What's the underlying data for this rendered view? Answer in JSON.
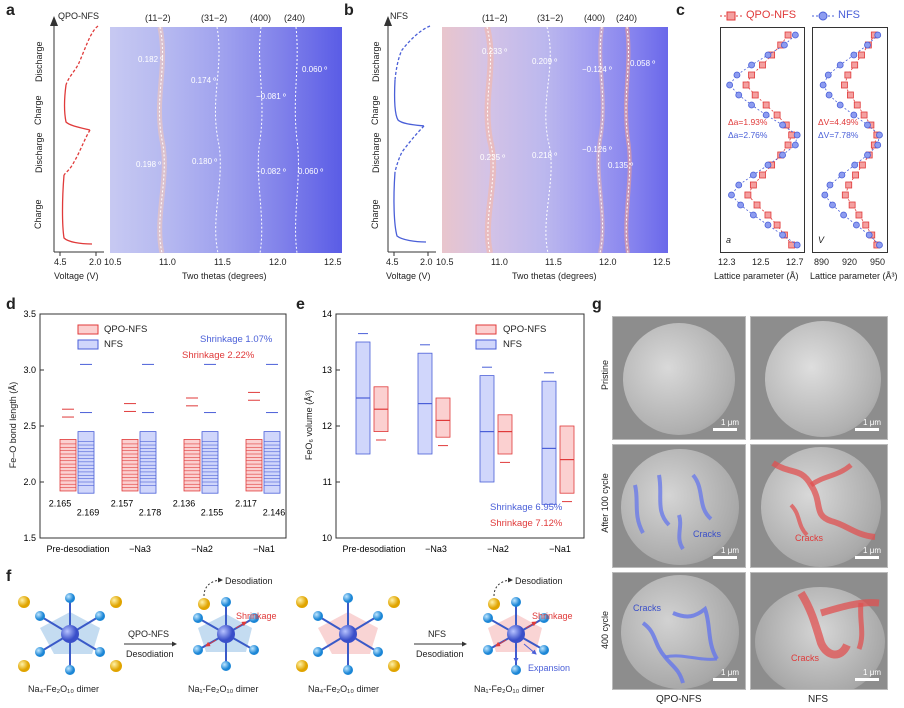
{
  "panel_labels": {
    "a": "a",
    "b": "b",
    "c": "c",
    "d": "d",
    "e": "e",
    "f": "f",
    "g": "g"
  },
  "panel_a": {
    "sample": "QPO-NFS",
    "states": [
      "Discharge",
      "Charge",
      "Discharge",
      "Charge"
    ],
    "peaks": [
      "(11−2)",
      "(31−2)",
      "(400)",
      "(240)"
    ],
    "shifts_top": [
      "0.182 º",
      "0.174 º",
      "−0.081 º",
      "0.060 º"
    ],
    "shifts_bottom": [
      "0.198 º",
      "0.180 º",
      "−0.082 º",
      "0.060 º"
    ],
    "voltage_ticks": [
      "4.5",
      "2.0"
    ],
    "voltage_label": "Voltage (V)",
    "theta_ticks": [
      "10.5",
      "11.0",
      "11.5",
      "12.0",
      "12.5"
    ],
    "theta_label": "Two thetas (degrees)"
  },
  "panel_b": {
    "sample": "NFS",
    "states": [
      "Discharge",
      "Charge",
      "Discharge",
      "Charge"
    ],
    "peaks": [
      "(11−2)",
      "(31−2)",
      "(400)",
      "(240)"
    ],
    "shifts_top": [
      "0.233 º",
      "0.209 º",
      "−0.124 º",
      "0.058 º"
    ],
    "shifts_bottom": [
      "0.235 º",
      "0.218 º",
      "−0.126 º",
      "0.135 º"
    ],
    "voltage_ticks": [
      "4.5",
      "2.0"
    ],
    "voltage_label": "Voltage (V)",
    "theta_ticks": [
      "10.5",
      "11.0",
      "11.5",
      "12.0",
      "12.5"
    ],
    "theta_label": "Two thetas (degrees)"
  },
  "panel_c": {
    "legend": [
      "QPO-NFS",
      "NFS"
    ],
    "colors": {
      "qpo": "#e03a3a",
      "nfs": "#4a5fd8"
    },
    "left": {
      "annot_qpo": "Δa=1.93%",
      "annot_nfs": "Δa=2.76%",
      "corner": "a",
      "ticks": [
        "12.3",
        "12.5",
        "12.7"
      ],
      "xlabel": "Lattice parameter (Å)"
    },
    "right": {
      "annot_qpo": "ΔV=4.49%",
      "annot_nfs": "ΔV=7.78%",
      "corner": "V",
      "ticks": [
        "890",
        "920",
        "950"
      ],
      "xlabel": "Lattice parameter (Å³)"
    }
  },
  "panel_d": {
    "ylabel": "Fe–O bond length (Å)",
    "yticks": [
      "1.5",
      "2.0",
      "2.5",
      "3.0",
      "3.5"
    ],
    "categories": [
      "Pre-desodiation",
      "−Na3",
      "−Na2",
      "−Na1"
    ],
    "legend": [
      "QPO-NFS",
      "NFS"
    ],
    "shrink_nfs": "Shrinkage 1.07%",
    "shrink_qpo": "Shrinkage 2.22%",
    "means_qpo": [
      "2.165",
      "2.157",
      "2.136",
      "2.117"
    ],
    "means_nfs": [
      "2.169",
      "2.178",
      "2.155",
      "2.146"
    ]
  },
  "panel_e": {
    "ylabel": "FeO₆ volume (Å³)",
    "yticks": [
      "10",
      "11",
      "12",
      "13",
      "14"
    ],
    "categories": [
      "Pre-desodiation",
      "−Na3",
      "−Na2",
      "−Na1"
    ],
    "legend": [
      "QPO-NFS",
      "NFS"
    ],
    "shrink_nfs": "Shrinkage 6.95%",
    "shrink_qpo": "Shrinkage 7.12%"
  },
  "panel_f": {
    "arrow1_top": "QPO-NFS",
    "arrow1_bottom": "Desodiation",
    "arrow2_top": "NFS",
    "arrow2_bottom": "Desodiation",
    "desodiation": "Desodiation",
    "shrinkage": "Shrinkage",
    "expansion": "Expansion",
    "captions": [
      "Na₄-Fe₂O₁₀ dimer",
      "Na₁-Fe₂O₁₀ dimer",
      "Na₄-Fe₂O₁₀ dimer",
      "Na₁-Fe₂O₁₀ dimer"
    ]
  },
  "panel_g": {
    "rows": [
      "Pristine",
      "After 100 cycle",
      "400 cycle"
    ],
    "cols": [
      "QPO-NFS",
      "NFS"
    ],
    "scale": "1 μm",
    "cracks": "Cracks"
  },
  "chart_data": [
    {
      "type": "scatter",
      "title": "",
      "xlabel": "Lattice parameter (Å)",
      "xlim": [
        12.3,
        12.7
      ],
      "series": [
        {
          "name": "QPO-NFS",
          "values": [
            12.66,
            12.62,
            12.58,
            12.53,
            12.47,
            12.42,
            12.45,
            12.5,
            12.55,
            12.6,
            12.64,
            12.66,
            12.63,
            12.58,
            12.52,
            12.46,
            12.41,
            12.44,
            12.5,
            12.55,
            12.6,
            12.64
          ]
        },
        {
          "name": "NFS",
          "values": [
            12.69,
            12.61,
            12.53,
            12.45,
            12.38,
            12.33,
            12.37,
            12.45,
            12.53,
            12.61,
            12.68,
            12.69,
            12.61,
            12.52,
            12.44,
            12.37,
            12.32,
            12.36,
            12.44,
            12.53,
            12.62,
            12.68
          ]
        }
      ]
    },
    {
      "type": "scatter",
      "title": "",
      "xlabel": "Lattice parameter (Å³)",
      "xlim": [
        880,
        955
      ],
      "series": [
        {
          "name": "QPO-NFS",
          "values": [
            949,
            943,
            936,
            928,
            920,
            912,
            916,
            924,
            932,
            940,
            946,
            949,
            942,
            934,
            926,
            918,
            911,
            915,
            923,
            931,
            939,
            946
          ]
        },
        {
          "name": "NFS",
          "values": [
            952,
            940,
            925,
            910,
            897,
            888,
            894,
            908,
            923,
            938,
            950,
            952,
            938,
            922,
            906,
            893,
            886,
            892,
            906,
            922,
            938,
            950
          ]
        }
      ]
    },
    {
      "type": "bar",
      "title": "",
      "ylabel": "Fe–O bond length (Å)",
      "ylim": [
        1.5,
        3.5
      ],
      "categories": [
        "Pre-desodiation",
        "−Na3",
        "−Na2",
        "−Na1"
      ],
      "series": [
        {
          "name": "QPO-NFS",
          "values": [
            2.165,
            2.157,
            2.136,
            2.117
          ]
        },
        {
          "name": "NFS",
          "values": [
            2.169,
            2.178,
            2.155,
            2.146
          ]
        }
      ]
    },
    {
      "type": "bar",
      "title": "",
      "ylabel": "FeO₆ volume (Å³)",
      "ylim": [
        10,
        14
      ],
      "categories": [
        "Pre-desodiation",
        "−Na3",
        "−Na2",
        "−Na1"
      ],
      "series": [
        {
          "name": "NFS",
          "values": [
            12.5,
            12.4,
            11.9,
            11.6
          ]
        },
        {
          "name": "QPO-NFS",
          "values": [
            12.3,
            12.1,
            11.9,
            11.4
          ]
        }
      ]
    }
  ]
}
